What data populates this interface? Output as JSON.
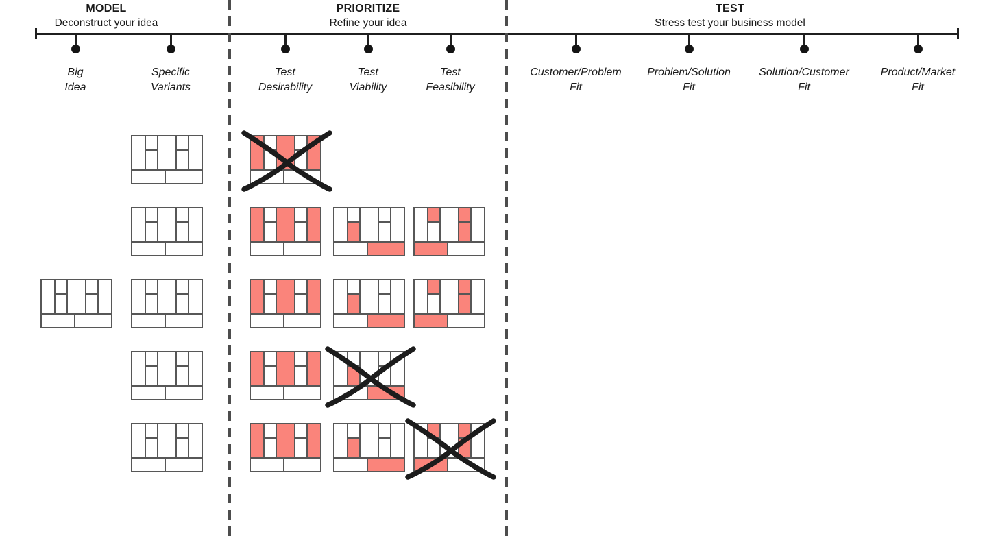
{
  "phases": [
    {
      "id": "model",
      "title": "MODEL",
      "subtitle": "Deconstruct your idea",
      "milestones": [
        {
          "id": "big-idea",
          "line1": "Big",
          "line2": "Idea"
        },
        {
          "id": "specific-variants",
          "line1": "Specific",
          "line2": "Variants"
        }
      ]
    },
    {
      "id": "prioritize",
      "title": "PRIORITIZE",
      "subtitle": "Refine your idea",
      "milestones": [
        {
          "id": "test-desirability",
          "line1": "Test",
          "line2": "Desirability"
        },
        {
          "id": "test-viability",
          "line1": "Test",
          "line2": "Viability"
        },
        {
          "id": "test-feasibility",
          "line1": "Test",
          "line2": "Feasibility"
        }
      ]
    },
    {
      "id": "test",
      "title": "TEST",
      "subtitle": "Stress test your business model",
      "milestones": [
        {
          "id": "customer-problem-fit",
          "line1": "Customer/Problem",
          "line2": "Fit"
        },
        {
          "id": "problem-solution-fit",
          "line1": "Problem/Solution",
          "line2": "Fit"
        },
        {
          "id": "solution-customer-fit",
          "line1": "Solution/Customer",
          "line2": "Fit"
        },
        {
          "id": "product-market-fit",
          "line1": "Product/Market",
          "line2": "Fit"
        }
      ]
    }
  ],
  "colors": {
    "highlight_red": "#FA847B",
    "canvas_line": "#575757",
    "timeline_black": "#1f1f1f",
    "divider_gray": "#4d4d4d",
    "text_black": "#1a1a1a"
  },
  "canvas_cells": [
    "key-partners",
    "key-activities",
    "key-resources",
    "value-proposition",
    "customer-relationships",
    "channels",
    "customer-segments",
    "cost-structure",
    "revenue-streams"
  ],
  "canvas_patterns": {
    "plain": [],
    "desirability": [
      "key-partners",
      "value-proposition",
      "customer-segments"
    ],
    "viability": [
      "key-resources",
      "revenue-streams"
    ],
    "feasibility": [
      "key-activities",
      "customer-relationships",
      "channels",
      "cost-structure"
    ]
  },
  "canvases": [
    {
      "column": "big-idea",
      "row": 3,
      "pattern": "plain",
      "crossed": false
    },
    {
      "column": "specific-variants",
      "row": 1,
      "pattern": "plain",
      "crossed": false
    },
    {
      "column": "specific-variants",
      "row": 2,
      "pattern": "plain",
      "crossed": false
    },
    {
      "column": "specific-variants",
      "row": 3,
      "pattern": "plain",
      "crossed": false
    },
    {
      "column": "specific-variants",
      "row": 4,
      "pattern": "plain",
      "crossed": false
    },
    {
      "column": "specific-variants",
      "row": 5,
      "pattern": "plain",
      "crossed": false
    },
    {
      "column": "test-desirability",
      "row": 1,
      "pattern": "desirability",
      "crossed": true
    },
    {
      "column": "test-desirability",
      "row": 2,
      "pattern": "desirability",
      "crossed": false
    },
    {
      "column": "test-desirability",
      "row": 3,
      "pattern": "desirability",
      "crossed": false
    },
    {
      "column": "test-desirability",
      "row": 4,
      "pattern": "desirability",
      "crossed": false
    },
    {
      "column": "test-desirability",
      "row": 5,
      "pattern": "desirability",
      "crossed": false
    },
    {
      "column": "test-viability",
      "row": 2,
      "pattern": "viability",
      "crossed": false
    },
    {
      "column": "test-viability",
      "row": 3,
      "pattern": "viability",
      "crossed": false
    },
    {
      "column": "test-viability",
      "row": 4,
      "pattern": "viability",
      "crossed": true
    },
    {
      "column": "test-viability",
      "row": 5,
      "pattern": "viability",
      "crossed": false
    },
    {
      "column": "test-feasibility",
      "row": 2,
      "pattern": "feasibility",
      "crossed": false
    },
    {
      "column": "test-feasibility",
      "row": 3,
      "pattern": "feasibility",
      "crossed": false
    },
    {
      "column": "test-feasibility",
      "row": 5,
      "pattern": "feasibility",
      "crossed": true
    }
  ]
}
